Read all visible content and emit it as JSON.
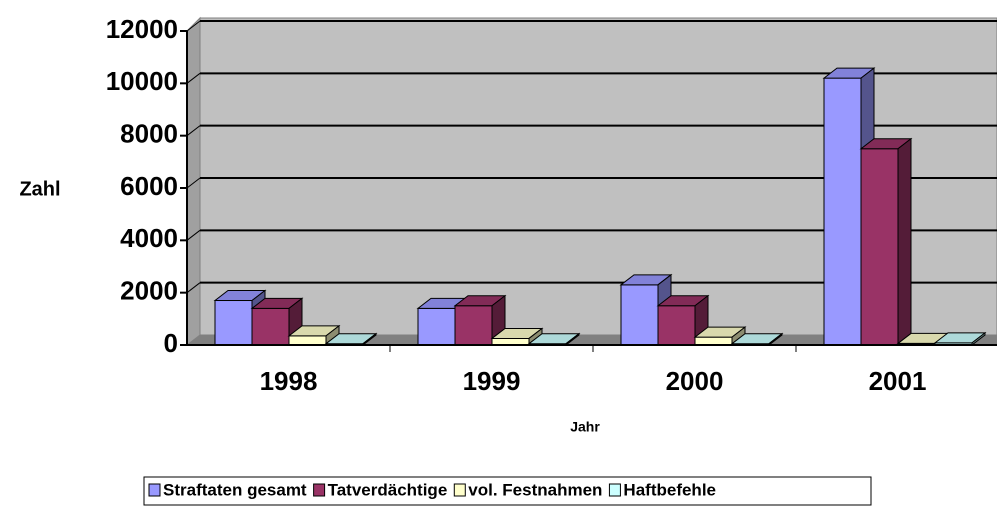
{
  "chart_data": {
    "type": "bar3d",
    "y_label": "Zahl",
    "x_label": "Jahr",
    "categories": [
      "1998",
      "1999",
      "2000",
      "2001"
    ],
    "series": [
      {
        "name": "Straftaten gesamt",
        "color": "#9999ff",
        "values": [
          1700,
          1400,
          2300,
          10200
        ]
      },
      {
        "name": "Tatverdächtige",
        "color": "#993366",
        "values": [
          1400,
          1500,
          1500,
          7500
        ]
      },
      {
        "name": "vol. Festnahmen",
        "color": "#ffffcc",
        "values": [
          350,
          250,
          300,
          60
        ]
      },
      {
        "name": "Haftbefehle",
        "color": "#ccffff",
        "values": [
          50,
          50,
          50,
          80
        ]
      }
    ],
    "ylim": [
      0,
      12000
    ],
    "yticks": [
      0,
      2000,
      4000,
      6000,
      8000,
      10000,
      12000
    ],
    "grid": true,
    "legend": "bottom"
  }
}
